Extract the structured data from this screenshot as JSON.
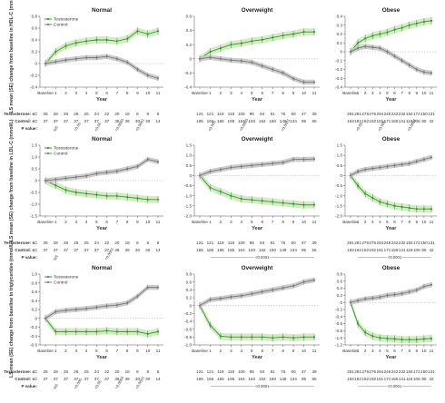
{
  "labels": {
    "year": "Year",
    "testosterone_n": "Testosterone: n=",
    "control_n": "Control: n=",
    "p_value": "P value:",
    "legend_t": "Testosterone",
    "legend_c": "Control"
  },
  "colors": {
    "testosterone": "#2f9a2f",
    "testosterone_band": "#cfe8b8",
    "control": "#7a7a7a",
    "control_band": "#c4c4c4"
  },
  "columns": [
    {
      "title": "Normal",
      "n_t": [
        "26",
        "28",
        "28",
        "26",
        "25",
        "24",
        "22",
        "20",
        "18",
        "8",
        "8",
        "5"
      ],
      "n_c": [
        "37",
        "37",
        "37",
        "37",
        "37",
        "37",
        "37",
        "36",
        "36",
        "30",
        "30",
        "14"
      ]
    },
    {
      "title": "Overweight",
      "n_t": [
        "121",
        "121",
        "119",
        "118",
        "106",
        "96",
        "84",
        "81",
        "76",
        "60",
        "47",
        "39"
      ],
      "n_c": [
        "165",
        "165",
        "165",
        "165",
        "164",
        "163",
        "162",
        "160",
        "149",
        "134",
        "95",
        "55"
      ]
    },
    {
      "title": "Obese",
      "n_t": [
        "281",
        "281",
        "279",
        "276",
        "264",
        "246",
        "242",
        "232",
        "184",
        "172",
        "150",
        "131"
      ],
      "n_c": [
        "193",
        "192",
        "192",
        "192",
        "181",
        "171",
        "155",
        "141",
        "118",
        "106",
        "80",
        "42"
      ]
    }
  ],
  "chart_data": [
    {
      "type": "line",
      "title": "Normal",
      "row": 0,
      "col": 0,
      "ylabel": "LS mean (SE) change from baseline in HDL-C (mmol/L)",
      "xlabel": "Year",
      "categories": [
        "Baseline",
        "1",
        "2",
        "3",
        "4",
        "5",
        "6",
        "7",
        "8",
        "9",
        "10",
        "11"
      ],
      "ylim": [
        -0.4,
        0.8
      ],
      "yticks": [
        "-0.4",
        "-0.2",
        "0",
        "0.2",
        "0.4",
        "0.6",
        "0.8"
      ],
      "series": [
        {
          "name": "Testosterone",
          "values": [
            0,
            0.2,
            0.3,
            0.35,
            0.38,
            0.4,
            0.4,
            0.38,
            0.42,
            0.55,
            0.5,
            0.55
          ]
        },
        {
          "name": "Control",
          "values": [
            0,
            0.03,
            0.06,
            0.08,
            0.1,
            0.1,
            0.12,
            0.08,
            0.02,
            -0.1,
            -0.2,
            -0.25
          ]
        }
      ],
      "p_values": [
        "NS",
        "<0.05",
        "<0.05",
        "<0.0005",
        "<0.0001"
      ]
    },
    {
      "type": "line",
      "title": "Overweight",
      "row": 0,
      "col": 1,
      "xlabel": "Year",
      "categories": [
        "Baseline",
        "1",
        "2",
        "3",
        "4",
        "5",
        "6",
        "7",
        "8",
        "9",
        "10",
        "11"
      ],
      "ylim": [
        -0.4,
        0.6
      ],
      "yticks": [
        "-0.4",
        "-0.2",
        "0",
        "0.2",
        "0.4",
        "0.6"
      ],
      "series": [
        {
          "name": "Testosterone",
          "values": [
            0,
            0.1,
            0.15,
            0.2,
            0.22,
            0.25,
            0.27,
            0.3,
            0.33,
            0.35,
            0.38,
            0.38
          ]
        },
        {
          "name": "Control",
          "values": [
            0,
            0.02,
            0.0,
            -0.02,
            -0.03,
            -0.05,
            -0.1,
            -0.15,
            -0.2,
            -0.28,
            -0.33,
            -0.33
          ]
        }
      ],
      "p_values": [
        "<0.005",
        "<0.0005",
        "<0.0001"
      ]
    },
    {
      "type": "line",
      "title": "Obese",
      "row": 0,
      "col": 2,
      "xlabel": "Year",
      "categories": [
        "Baseline",
        "1",
        "2",
        "3",
        "4",
        "5",
        "6",
        "7",
        "8",
        "9",
        "10",
        "11"
      ],
      "ylim": [
        -0.4,
        0.4
      ],
      "yticks": [
        "-0.4",
        "-0.3",
        "-0.2",
        "-0.1",
        "0",
        "0.1",
        "0.2",
        "0.3",
        "0.4"
      ],
      "series": [
        {
          "name": "Testosterone",
          "values": [
            0,
            0.1,
            0.15,
            0.18,
            0.2,
            0.22,
            0.25,
            0.27,
            0.3,
            0.32,
            0.34,
            0.35
          ]
        },
        {
          "name": "Control",
          "values": [
            0,
            0.04,
            0.06,
            0.05,
            0.04,
            0.0,
            -0.05,
            -0.1,
            -0.15,
            -0.2,
            -0.23,
            -0.24
          ]
        }
      ],
      "p_values": [
        "<0.05",
        "<0.005",
        "<0.0001"
      ]
    },
    {
      "type": "line",
      "title": "Normal",
      "row": 1,
      "col": 0,
      "ylabel": "LS mean (SE) change from baseline in LDL-C (mmol/L)",
      "xlabel": "Year",
      "categories": [
        "Baseline",
        "1",
        "2",
        "3",
        "4",
        "5",
        "6",
        "7",
        "8",
        "9",
        "10",
        "11"
      ],
      "ylim": [
        -1.5,
        1.5
      ],
      "yticks": [
        "-1.5",
        "-1.0",
        "-0.5",
        "0",
        "0.5",
        "1.0",
        "1.5"
      ],
      "series": [
        {
          "name": "Testosterone",
          "values": [
            0,
            -0.2,
            -0.4,
            -0.5,
            -0.55,
            -0.6,
            -0.65,
            -0.65,
            -0.7,
            -0.75,
            -0.8,
            -0.8
          ]
        },
        {
          "name": "Control",
          "values": [
            0,
            0.05,
            0.1,
            0.15,
            0.2,
            0.3,
            0.35,
            0.4,
            0.5,
            0.6,
            0.9,
            0.8
          ]
        }
      ],
      "p_values": [
        "NS",
        "<0.0001"
      ]
    },
    {
      "type": "line",
      "title": "Overweight",
      "row": 1,
      "col": 1,
      "xlabel": "Year",
      "categories": [
        "Baseline",
        "1",
        "2",
        "3",
        "4",
        "5",
        "6",
        "7",
        "8",
        "9",
        "10",
        "11"
      ],
      "ylim": [
        -2.0,
        1.5
      ],
      "yticks": [
        "-2.0",
        "-1.5",
        "-1.0",
        "-0.5",
        "0",
        "0.5",
        "1.0",
        "1.5"
      ],
      "series": [
        {
          "name": "Testosterone",
          "values": [
            0,
            -0.6,
            -0.8,
            -1.0,
            -1.15,
            -1.2,
            -1.25,
            -1.3,
            -1.35,
            -1.4,
            -1.45,
            -1.45
          ]
        },
        {
          "name": "Control",
          "values": [
            0,
            0.2,
            0.3,
            0.4,
            0.45,
            0.5,
            0.55,
            0.6,
            0.65,
            0.8,
            0.8,
            0.82
          ]
        }
      ],
      "p_values": [
        "<0.0001"
      ]
    },
    {
      "type": "line",
      "title": "Obese",
      "row": 1,
      "col": 2,
      "xlabel": "Year",
      "categories": [
        "Baseline",
        "1",
        "2",
        "3",
        "4",
        "5",
        "6",
        "7",
        "8",
        "9",
        "10",
        "11"
      ],
      "ylim": [
        -2.0,
        1.5
      ],
      "yticks": [
        "-2.0",
        "-1.5",
        "-1.0",
        "-0.5",
        "0",
        "0.5",
        "1.0",
        "1.5"
      ],
      "series": [
        {
          "name": "Testosterone",
          "values": [
            0,
            -0.5,
            -0.9,
            -1.1,
            -1.3,
            -1.4,
            -1.5,
            -1.55,
            -1.6,
            -1.65,
            -1.65,
            -1.65
          ]
        },
        {
          "name": "Control",
          "values": [
            0,
            0.2,
            0.3,
            0.35,
            0.4,
            0.45,
            0.5,
            0.55,
            0.6,
            0.7,
            0.8,
            0.9
          ]
        }
      ],
      "p_values": [
        "<0.0001"
      ]
    },
    {
      "type": "line",
      "title": "Normal",
      "row": 2,
      "col": 0,
      "ylabel": "LS mean (SE) change from baseline in triglycerides (mmol/L)",
      "xlabel": "Year",
      "categories": [
        "Baseline",
        "1",
        "2",
        "3",
        "4",
        "5",
        "6",
        "7",
        "8",
        "9",
        "10",
        "11"
      ],
      "ylim": [
        -0.6,
        1.0
      ],
      "yticks": [
        "-0.6",
        "-0.4",
        "-0.2",
        "0",
        "0.2",
        "0.4",
        "0.6",
        "0.8",
        "1.0"
      ],
      "series": [
        {
          "name": "Testosterone",
          "values": [
            0,
            -0.3,
            -0.3,
            -0.3,
            -0.3,
            -0.3,
            -0.28,
            -0.3,
            -0.3,
            -0.3,
            -0.35,
            -0.3
          ]
        },
        {
          "name": "Control",
          "values": [
            0,
            0.15,
            0.18,
            0.2,
            0.22,
            0.25,
            0.28,
            0.3,
            0.35,
            0.5,
            0.7,
            0.7
          ]
        }
      ],
      "p_values": [
        "NS",
        "<0.005",
        "<0.05",
        "<0.0005",
        "<0.0001"
      ]
    },
    {
      "type": "line",
      "title": "Overweight",
      "row": 2,
      "col": 1,
      "xlabel": "Year",
      "categories": [
        "Baseline",
        "1",
        "2",
        "3",
        "4",
        "5",
        "6",
        "7",
        "8",
        "9",
        "10",
        "11"
      ],
      "ylim": [
        -1.0,
        0.8
      ],
      "yticks": [
        "-1.0",
        "-0.8",
        "-0.6",
        "-0.4",
        "-0.2",
        "0",
        "0.2",
        "0.4",
        "0.6",
        "0.8"
      ],
      "series": [
        {
          "name": "Testosterone",
          "values": [
            0,
            -0.5,
            -0.78,
            -0.8,
            -0.8,
            -0.8,
            -0.8,
            -0.82,
            -0.8,
            -0.82,
            -0.8,
            -0.8
          ]
        },
        {
          "name": "Control",
          "values": [
            0,
            0.15,
            0.18,
            0.22,
            0.25,
            0.3,
            0.35,
            0.4,
            0.45,
            0.5,
            0.6,
            0.65
          ]
        }
      ],
      "p_values": [
        "<0.0001"
      ]
    },
    {
      "type": "line",
      "title": "Obese",
      "row": 2,
      "col": 2,
      "xlabel": "Year",
      "categories": [
        "Baseline",
        "1",
        "2",
        "3",
        "4",
        "5",
        "6",
        "7",
        "8",
        "9",
        "10",
        "11"
      ],
      "ylim": [
        -1.2,
        0.8
      ],
      "yticks": [
        "-1.2",
        "-1.0",
        "-0.8",
        "-0.6",
        "-0.4",
        "-0.2",
        "0",
        "0.2",
        "0.4",
        "0.6",
        "0.8"
      ],
      "series": [
        {
          "name": "Testosterone",
          "values": [
            0,
            -0.6,
            -0.85,
            -0.95,
            -1.0,
            -1.02,
            -1.03,
            -1.05,
            -1.05,
            -1.05,
            -1.03,
            -1.02
          ]
        },
        {
          "name": "Control",
          "values": [
            0,
            0.05,
            0.1,
            0.12,
            0.15,
            0.2,
            0.22,
            0.25,
            0.3,
            0.35,
            0.45,
            0.5
          ]
        }
      ],
      "p_values": [
        "<0.0001"
      ]
    }
  ]
}
